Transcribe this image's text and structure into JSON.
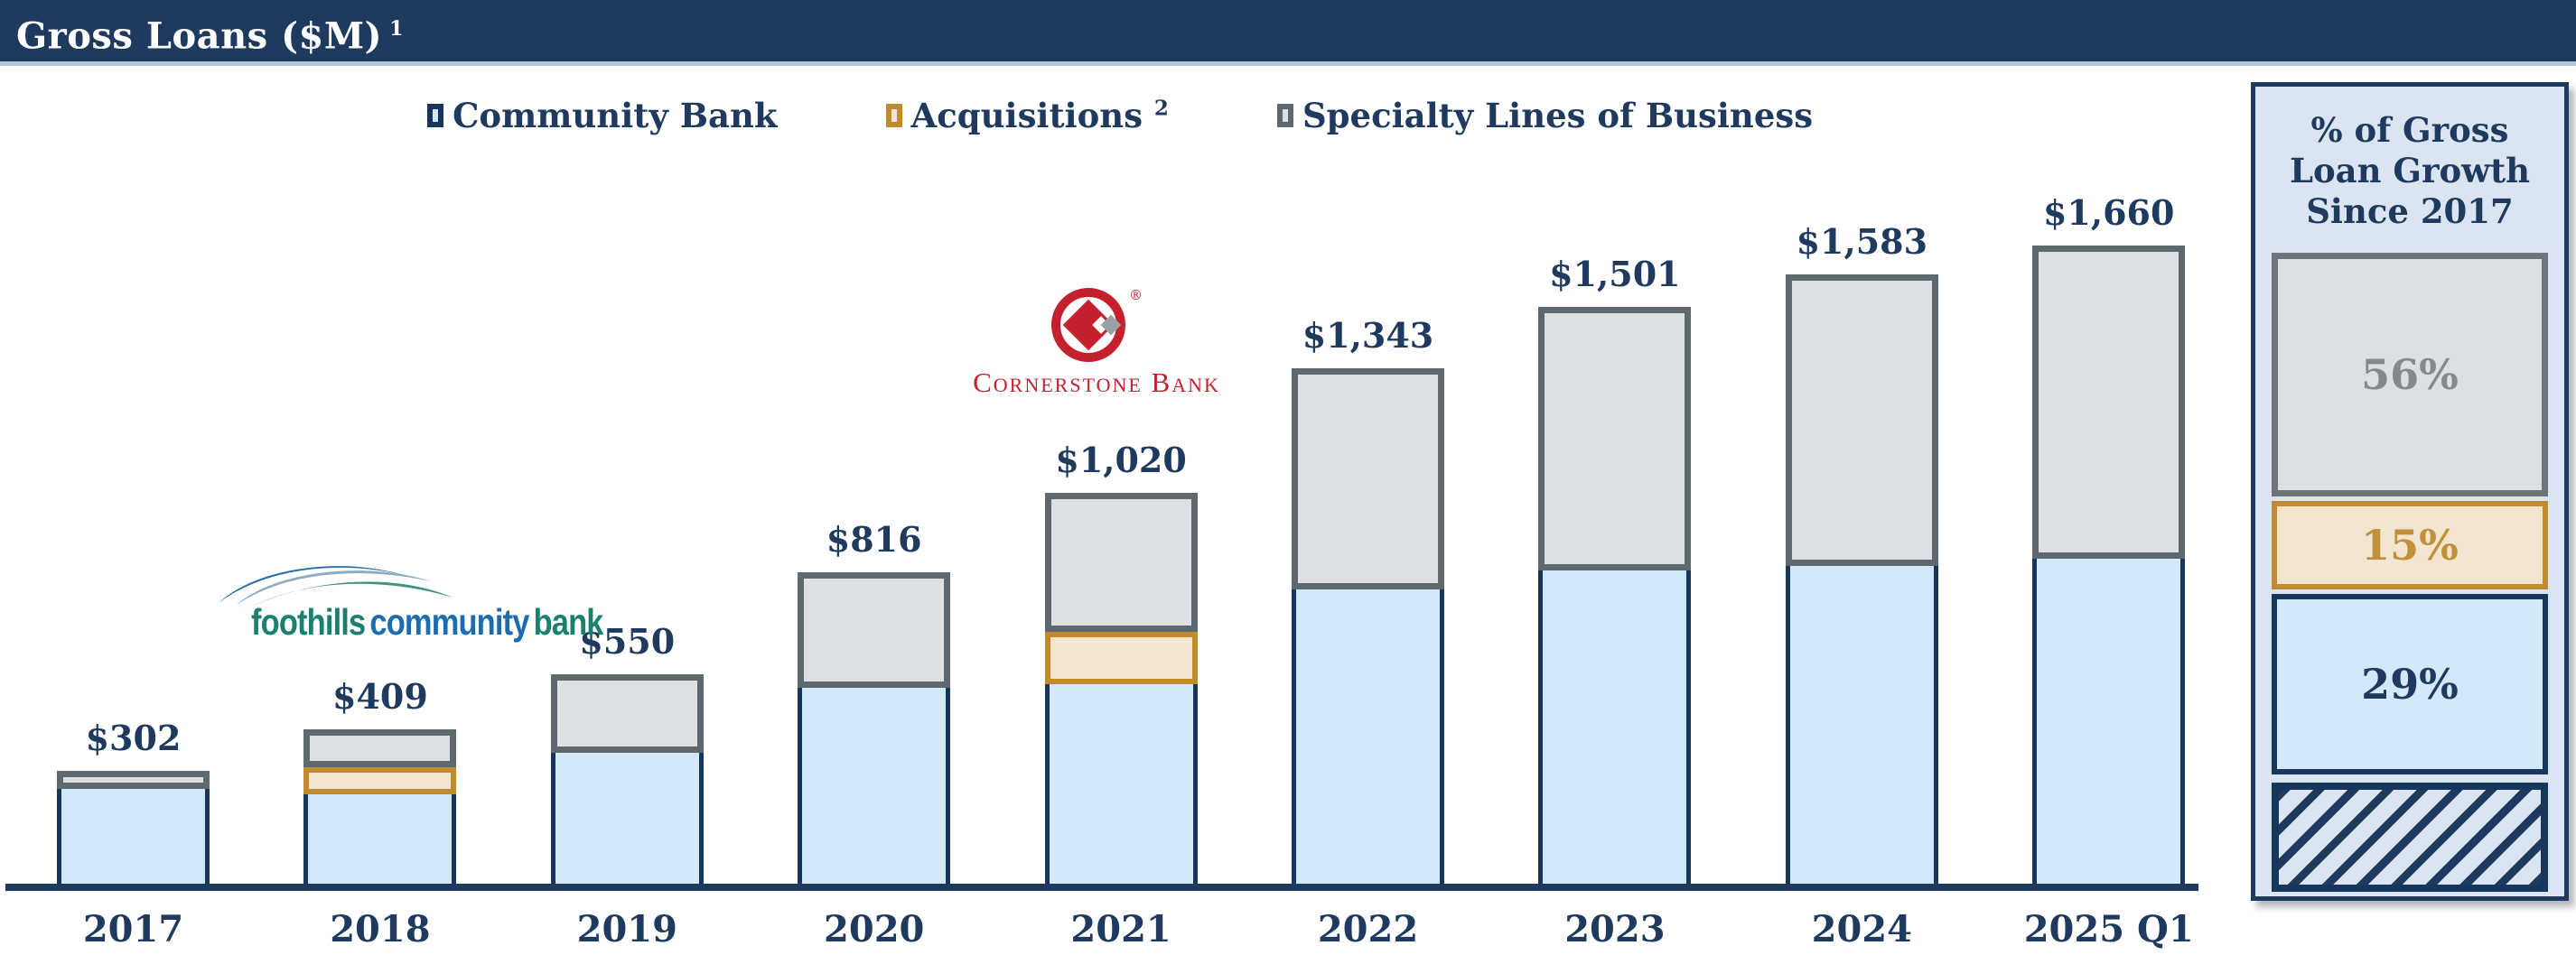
{
  "header": {
    "title": "Gross Loans ($M)",
    "footnote_sup": "1"
  },
  "legend": [
    {
      "label": "Community Bank",
      "sup": "",
      "swatch_fill": "#d3e8f8",
      "swatch_border": "#17365c"
    },
    {
      "label": "Acquisitions",
      "sup": "2",
      "swatch_fill": "#f2e6d0",
      "swatch_border": "#c08a2d"
    },
    {
      "label": "Specialty Lines of Business",
      "sup": "",
      "swatch_fill": "#dde0e3",
      "swatch_border": "#5d686f"
    }
  ],
  "chart_data": {
    "type": "bar",
    "stacked": true,
    "title": "Gross Loans ($M)",
    "categories": [
      "2017",
      "2018",
      "2019",
      "2020",
      "2021",
      "2022",
      "2023",
      "2024",
      "2025 Q1"
    ],
    "totals": [
      302,
      409,
      550,
      816,
      1020,
      1343,
      1501,
      1583,
      1660
    ],
    "total_labels": [
      "$302",
      "$409",
      "$550",
      "$816",
      "$1,020",
      "$1,343",
      "$1,501",
      "$1,583",
      "$1,660"
    ],
    "series": [
      {
        "name": "Community Bank",
        "color": "#d3e8f8",
        "border": "#17365c",
        "values": [
          255,
          240,
          347,
          516,
          525,
          770,
          820,
          830,
          850
        ]
      },
      {
        "name": "Acquisitions",
        "color": "#f2e6d0",
        "border": "#c08a2d",
        "values": [
          0,
          70,
          0,
          0,
          135,
          0,
          0,
          0,
          0
        ]
      },
      {
        "name": "Specialty Lines of Business",
        "color": "#dde0e3",
        "border": "#5d686f",
        "values": [
          47,
          99,
          203,
          300,
          360,
          573,
          681,
          753,
          810
        ]
      }
    ],
    "ylim": [
      0,
      1800
    ],
    "grid": false,
    "legend_position": "top"
  },
  "annotations": {
    "foothills": {
      "word1": "foothills",
      "word2": "community",
      "word3": "bank"
    },
    "cornerstone": {
      "text": "Cornerstone Bank",
      "reg": "®"
    }
  },
  "growth_panel": {
    "title_lines": [
      "% of Gross",
      "Loan Growth",
      "Since 2017"
    ],
    "segments": [
      {
        "name": "specialty-lines",
        "label": "56%"
      },
      {
        "name": "acquisitions",
        "label": "15%"
      },
      {
        "name": "community-bank",
        "label": "29%"
      },
      {
        "name": "base-2017-hatched",
        "label": ""
      }
    ]
  },
  "colors": {
    "header_navy": "#1e3a5f",
    "label_navy": "#1f3a5f",
    "community_fill": "#d3e8f8",
    "community_border": "#17365c",
    "acquisitions_fill": "#f2e6d0",
    "acquisitions_border": "#c08a2d",
    "specialty_fill": "#dde0e3",
    "specialty_border": "#5d686f",
    "panel_bg": "#dbe5f1",
    "cornerstone_red": "#c4202e",
    "foothills_teal": "#1a8070",
    "foothills_blue": "#1b6cb0"
  }
}
